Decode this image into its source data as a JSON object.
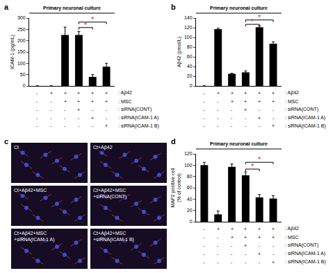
{
  "chart_data": [
    {
      "panel": "a",
      "type": "bar",
      "title": "Primary neuronal culture",
      "y_label": "ICAM-1 (pg/mL)",
      "categories": [
        null,
        null,
        null,
        null,
        null,
        null
      ],
      "values": [
        0,
        0,
        225,
        225,
        40,
        85
      ],
      "errors": [
        0,
        0,
        35,
        15,
        10,
        15
      ],
      "color": "#000000",
      "ylim": [
        0,
        300
      ],
      "yticks": [
        0,
        50,
        100,
        150,
        200,
        250,
        300
      ],
      "grid": false,
      "tick_labels": "y",
      "significance": [
        {
          "from": 3,
          "to": 4,
          "y": 258,
          "label": "*",
          "color": "#e0245e"
        },
        {
          "from": 3,
          "to": 5,
          "y": 282,
          "label": "*",
          "color": "#e0245e"
        }
      ],
      "conditions": [
        {
          "label": ": Aβ42",
          "signs": [
            "-",
            "+",
            "+",
            "+",
            "+",
            "+"
          ]
        },
        {
          "label": ": MSC",
          "signs": [
            "-",
            "-",
            "+",
            "+",
            "+",
            "+"
          ]
        },
        {
          "label": ": siRNA(CONT)",
          "signs": [
            "-",
            "-",
            "-",
            "+",
            "-",
            "-"
          ]
        },
        {
          "label": ": siRNA(ICAM-1 A)",
          "signs": [
            "-",
            "-",
            "-",
            "-",
            "+",
            "-"
          ]
        },
        {
          "label": ": siRNA(ICAM-1 B)",
          "signs": [
            "-",
            "-",
            "-",
            "-",
            "-",
            "+"
          ]
        }
      ]
    },
    {
      "panel": "b",
      "type": "bar",
      "title": "Primary neuronal culture",
      "y_label": "Aβ42 (pmol/L)",
      "categories": [
        null,
        null,
        null,
        null,
        null,
        null
      ],
      "values": [
        0,
        117,
        25,
        28,
        121,
        87
      ],
      "errors": [
        0,
        2,
        1,
        3,
        3,
        4
      ],
      "color": "#000000",
      "ylim": [
        0,
        140
      ],
      "yticks": [
        0,
        20,
        40,
        60,
        80,
        100,
        120,
        140
      ],
      "grid": false,
      "tick_labels": "y",
      "significance": [
        {
          "from": 3,
          "to": 4,
          "y": 127,
          "label": "*",
          "color": "#e0245e"
        },
        {
          "from": 3,
          "to": 5,
          "y": 136,
          "label": "*",
          "color": "#e0245e"
        }
      ],
      "conditions": [
        {
          "label": ": Aβ42",
          "signs": [
            "-",
            "+",
            "+",
            "+",
            "+",
            "+"
          ]
        },
        {
          "label": ": MSC",
          "signs": [
            "-",
            "-",
            "+",
            "+",
            "+",
            "+"
          ]
        },
        {
          "label": ": siRNA(CONT)",
          "signs": [
            "-",
            "-",
            "-",
            "+",
            "-",
            "-"
          ]
        },
        {
          "label": ": siRNA(ICAM-1 A)",
          "signs": [
            "-",
            "-",
            "-",
            "-",
            "+",
            "-"
          ]
        },
        {
          "label": ": siRNA(ICAM-1 B)",
          "signs": [
            "-",
            "-",
            "-",
            "-",
            "-",
            "+"
          ]
        }
      ]
    },
    {
      "panel": "d",
      "type": "bar",
      "title": "Primary neuronal culture",
      "y_label": "MAP2 positive cell\n(% of control)",
      "categories": [
        null,
        null,
        null,
        null,
        null,
        null
      ],
      "values": [
        100,
        13,
        97,
        82,
        43,
        41
      ],
      "errors": [
        5,
        6,
        5,
        6,
        5,
        5
      ],
      "color": "#000000",
      "ylim": [
        0,
        120
      ],
      "yticks": [
        0,
        20,
        40,
        60,
        80,
        100,
        120
      ],
      "grid": false,
      "tick_labels": "y",
      "significance": [
        {
          "from": 3,
          "to": 4,
          "y": 93,
          "label": "*",
          "color": "#e0245e"
        },
        {
          "from": 3,
          "to": 5,
          "y": 105,
          "label": "*",
          "color": "#e0245e"
        }
      ],
      "conditions": [
        {
          "label": ": Aβ42",
          "signs": [
            "-",
            "+",
            "+",
            "+",
            "+",
            "+"
          ]
        },
        {
          "label": ": MSC",
          "signs": [
            "-",
            "-",
            "+",
            "+",
            "+",
            "+"
          ]
        },
        {
          "label": ": siRNA(CONT)",
          "signs": [
            "-",
            "-",
            "-",
            "+",
            "-",
            "-"
          ]
        },
        {
          "label": ": siRNA(ICAM-1 A)",
          "signs": [
            "-",
            "-",
            "-",
            "-",
            "+",
            "-"
          ]
        },
        {
          "label": ": siRNA(ICAM-1 B)",
          "signs": [
            "-",
            "-",
            "-",
            "-",
            "-",
            "+"
          ]
        }
      ]
    }
  ],
  "image_panel": {
    "panel": "c",
    "images": [
      {
        "label": [
          "Ct"
        ]
      },
      {
        "label": [
          "Ct+Aβ42"
        ]
      },
      {
        "label": [
          "Ct+Aβ42+MSC"
        ]
      },
      {
        "label": [
          "Ct+Aβ42+MSC",
          "+siRNA(CONT)"
        ]
      },
      {
        "label": [
          "Ct+Aβ42+MSC",
          "+siRNA(ICAM-1 A)"
        ]
      },
      {
        "label": [
          "Ct+Aβ42+MSC",
          "+siRNA(ICAM-1 B)"
        ]
      }
    ]
  }
}
